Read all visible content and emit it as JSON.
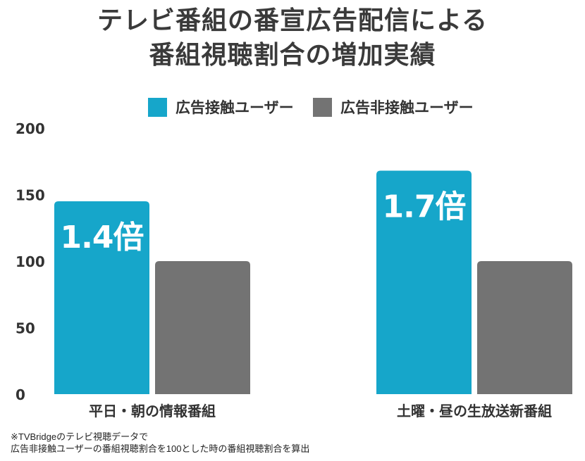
{
  "title_lines": [
    "テレビ番組の番宣広告配信による",
    "番組視聴割合の増加実績"
  ],
  "chart_data": {
    "type": "bar",
    "categories": [
      "平日・朝の情報番組",
      "土曜・昼の生放送新番組"
    ],
    "series": [
      {
        "name": "広告接触ユーザー",
        "values": [
          145,
          168
        ],
        "color": "#16a6ca",
        "labels": [
          "1.4倍",
          "1.7倍"
        ]
      },
      {
        "name": "広告非接触ユーザー",
        "values": [
          100,
          100
        ],
        "color": "#737373"
      }
    ],
    "ylim": [
      0,
      200
    ],
    "yticks": [
      0,
      50,
      100,
      150,
      200
    ],
    "grid": false,
    "legend": "top-center"
  },
  "notes": [
    "※TVBridgeのテレビ視聴データで",
    "広告非接触ユーザーの番組視聴割合を100とした時の番組視聴割合を算出"
  ]
}
